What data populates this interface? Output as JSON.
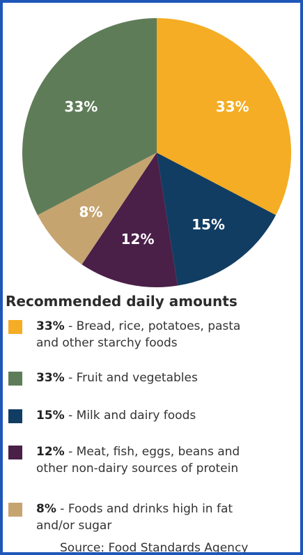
{
  "chart_data": {
    "type": "pie",
    "slices": [
      {
        "label": "33%",
        "value": 33,
        "color": "#f4ad24"
      },
      {
        "label": "15%",
        "value": 15,
        "color": "#123d62"
      },
      {
        "label": "12%",
        "value": 12,
        "color": "#4a1f48"
      },
      {
        "label": "8%",
        "value": 8,
        "color": "#c6a470"
      },
      {
        "label": "33%",
        "value": 33,
        "color": "#5f7c58"
      }
    ],
    "legend_title": "Recommended daily amounts",
    "source": "Source: Food Standards Agency"
  },
  "legend": {
    "title": "Recommended daily amounts",
    "items": [
      {
        "pct": "33%",
        "line1": " - Bread, rice, potatoes, pasta",
        "line2": "and other starchy foods",
        "color": "#f4ad24"
      },
      {
        "pct": "33%",
        "line1": " - Fruit and vegetables",
        "line2": "",
        "color": "#5f7c58"
      },
      {
        "pct": "15%",
        "line1": " - Milk and dairy foods",
        "line2": "",
        "color": "#123d62"
      },
      {
        "pct": "12%",
        "line1": " - Meat, fish, eggs, beans and",
        "line2": "other non-dairy sources of protein",
        "color": "#4a1f48"
      },
      {
        "pct": "8%",
        "line1": " - Foods and drinks high in fat",
        "line2": "and/or sugar",
        "color": "#c6a470"
      }
    ]
  },
  "source": "Source: Food Standards Agency",
  "colors": {
    "border": "#1f57b8"
  }
}
